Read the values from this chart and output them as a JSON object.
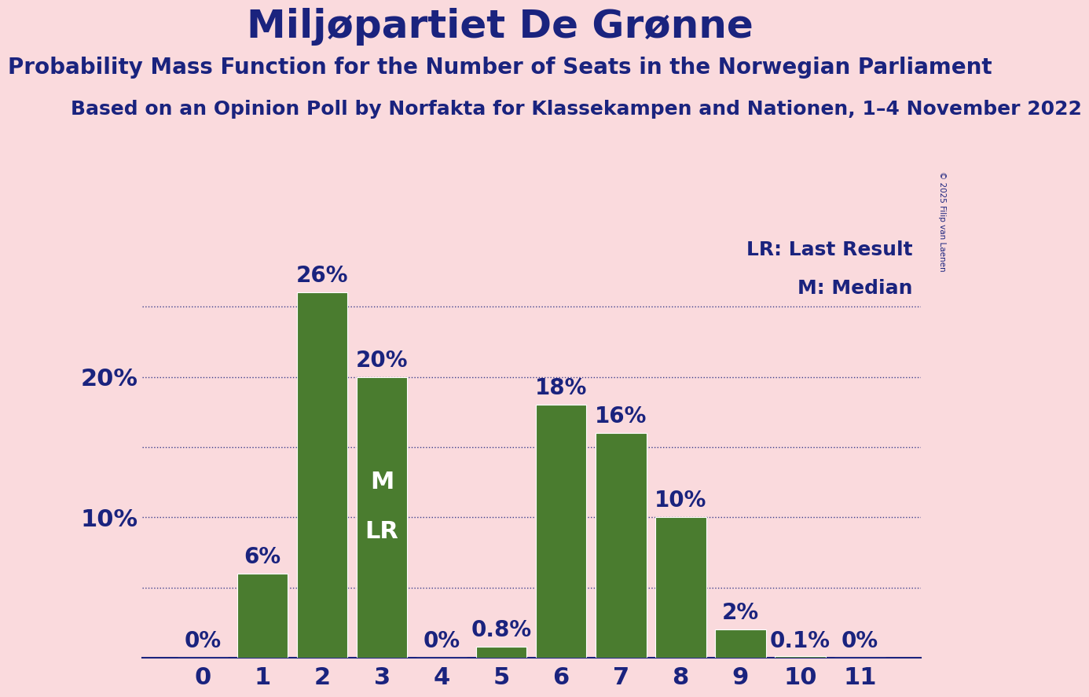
{
  "title": "Miljøpartiet De Grønne",
  "subtitle": "Probability Mass Function for the Number of Seats in the Norwegian Parliament",
  "source": "Based on an Opinion Poll by Norfakta for Klassekampen and Nationen, 1–4 November 2022",
  "copyright": "© 2025 Filip van Laenen",
  "categories": [
    0,
    1,
    2,
    3,
    4,
    5,
    6,
    7,
    8,
    9,
    10,
    11
  ],
  "values": [
    0.0,
    6.0,
    26.0,
    20.0,
    0.0,
    0.8,
    18.0,
    16.0,
    10.0,
    2.0,
    0.1,
    0.0
  ],
  "labels": [
    "0%",
    "6%",
    "26%",
    "20%",
    "0%",
    "0.8%",
    "18%",
    "16%",
    "10%",
    "2%",
    "0.1%",
    "0%"
  ],
  "bar_color": "#4a7c2f",
  "background_color": "#fadadd",
  "text_color": "#1a237e",
  "grid_color": "#1a237e",
  "bar_edge_color": "#ffffff",
  "title_fontsize": 36,
  "subtitle_fontsize": 20,
  "source_fontsize": 18,
  "label_fontsize": 20,
  "tick_fontsize": 22,
  "ytick_fontsize": 22,
  "legend_fontsize": 18,
  "median_seat": 3,
  "last_result_seat": 3,
  "median_label": "M",
  "last_result_label": "LR",
  "ylim": [
    0,
    30
  ],
  "dotted_lines": [
    5,
    10,
    15,
    20,
    25
  ]
}
